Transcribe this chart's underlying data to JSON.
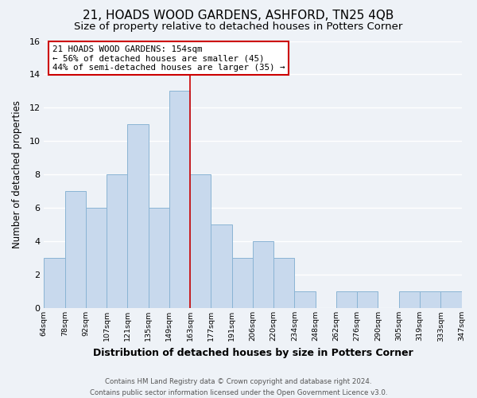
{
  "title": "21, HOADS WOOD GARDENS, ASHFORD, TN25 4QB",
  "subtitle": "Size of property relative to detached houses in Potters Corner",
  "xlabel": "Distribution of detached houses by size in Potters Corner",
  "ylabel": "Number of detached properties",
  "bin_labels": [
    "64sqm",
    "78sqm",
    "92sqm",
    "107sqm",
    "121sqm",
    "135sqm",
    "149sqm",
    "163sqm",
    "177sqm",
    "191sqm",
    "206sqm",
    "220sqm",
    "234sqm",
    "248sqm",
    "262sqm",
    "276sqm",
    "290sqm",
    "305sqm",
    "319sqm",
    "333sqm",
    "347sqm"
  ],
  "bar_values": [
    3,
    7,
    6,
    8,
    11,
    6,
    13,
    8,
    5,
    3,
    4,
    3,
    1,
    0,
    1,
    1,
    0,
    1,
    1,
    1
  ],
  "bar_color": "#c8d9ed",
  "bar_edge_color": "#8ab4d4",
  "vline_color": "#cc0000",
  "ylim": [
    0,
    16
  ],
  "yticks": [
    0,
    2,
    4,
    6,
    8,
    10,
    12,
    14,
    16
  ],
  "annotation_title": "21 HOADS WOOD GARDENS: 154sqm",
  "annotation_line1": "← 56% of detached houses are smaller (45)",
  "annotation_line2": "44% of semi-detached houses are larger (35) →",
  "annotation_box_color": "#ffffff",
  "annotation_box_edge": "#cc0000",
  "footer1": "Contains HM Land Registry data © Crown copyright and database right 2024.",
  "footer2": "Contains public sector information licensed under the Open Government Licence v3.0.",
  "background_color": "#eef2f7",
  "grid_color": "#ffffff",
  "title_fontsize": 11,
  "subtitle_fontsize": 9.5,
  "xlabel_fontsize": 9,
  "ylabel_fontsize": 8.5,
  "annotation_fontsize": 7.8,
  "footer_fontsize": 6.2
}
